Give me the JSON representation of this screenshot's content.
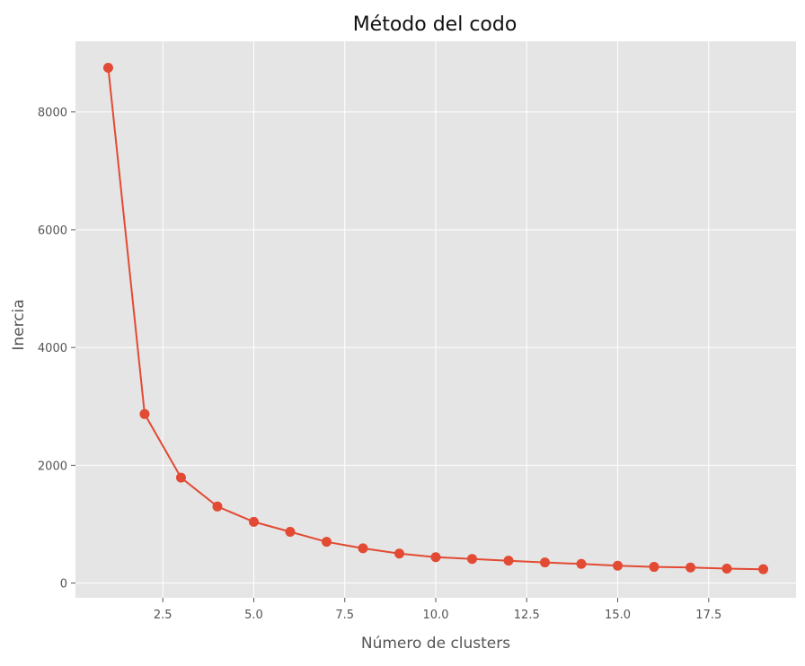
{
  "chart_data": {
    "type": "line",
    "title": "Método del codo",
    "xlabel": "Número de clusters",
    "ylabel": "Inercia",
    "xlim": [
      0.1,
      19.9
    ],
    "ylim": [
      -250,
      9200
    ],
    "xticks": [
      2.5,
      5.0,
      7.5,
      10.0,
      12.5,
      15.0,
      17.5
    ],
    "xtick_labels": [
      "2.5",
      "5.0",
      "7.5",
      "10.0",
      "12.5",
      "15.0",
      "17.5"
    ],
    "yticks": [
      0,
      2000,
      4000,
      6000,
      8000
    ],
    "ytick_labels": [
      "0",
      "2000",
      "4000",
      "6000",
      "8000"
    ],
    "grid": true,
    "colors": {
      "line": "#e24a33",
      "background": "#e5e5e5",
      "grid": "#ffffff"
    },
    "series": [
      {
        "x": [
          1,
          2,
          3,
          4,
          5,
          6,
          7,
          8,
          9,
          10,
          11,
          12,
          13,
          14,
          15,
          16,
          17,
          18,
          19
        ],
        "y": [
          8750,
          2870,
          1790,
          1300,
          1040,
          870,
          700,
          590,
          500,
          440,
          410,
          380,
          350,
          325,
          295,
          275,
          265,
          245,
          235
        ]
      }
    ]
  }
}
